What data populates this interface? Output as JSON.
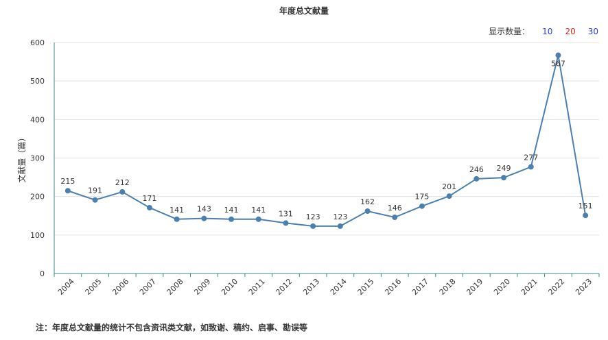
{
  "title": "年度总文献量",
  "selector": {
    "label": "显示数量：",
    "options": [
      {
        "label": "10",
        "color": "#2f3de0"
      },
      {
        "label": "20",
        "color": "#e02020"
      },
      {
        "label": "30",
        "color": "#2f3de0"
      }
    ]
  },
  "footnote": "注：年度总文献量的统计不包含资讯类文献，如致谢、稿约、启事、勘误等",
  "chart_data": {
    "type": "line",
    "title": "年度总文献量",
    "xlabel": "",
    "ylabel": "文献量（篇）",
    "ylim": [
      0,
      600
    ],
    "yticks": [
      0,
      100,
      200,
      300,
      400,
      500,
      600
    ],
    "grid": true,
    "color": "#4a7fb0",
    "categories": [
      "2004",
      "2005",
      "2006",
      "2007",
      "2008",
      "2009",
      "2010",
      "2011",
      "2012",
      "2013",
      "2014",
      "2015",
      "2016",
      "2017",
      "2018",
      "2019",
      "2020",
      "2021",
      "2022",
      "2023"
    ],
    "values": [
      215,
      191,
      212,
      171,
      141,
      143,
      141,
      141,
      131,
      123,
      123,
      162,
      146,
      175,
      201,
      246,
      249,
      277,
      567,
      151
    ]
  }
}
